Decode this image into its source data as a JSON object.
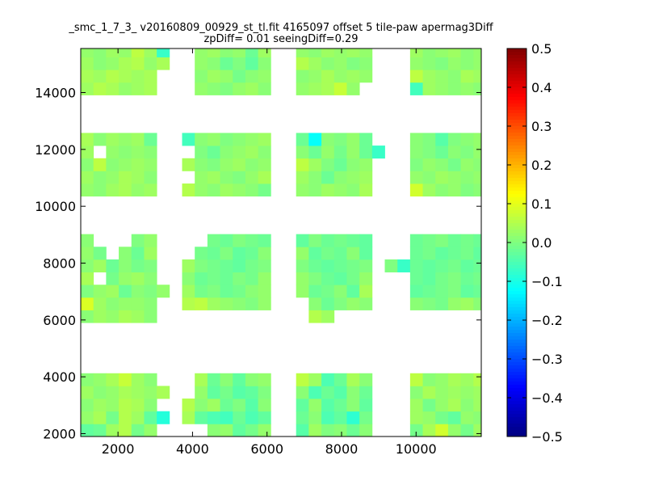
{
  "chart_data": {
    "type": "heatmap",
    "title_lines": [
      "_smc_1_7_3_ v20160809_00929_st_tl.fit 4165097 offset 5 tile-paw apermag3Diff",
      "zpDiff= 0.01 seeingDiff=0.29"
    ],
    "xlabel": "",
    "ylabel": "",
    "xlim": [
      1000,
      11750
    ],
    "ylim": [
      1900,
      15550
    ],
    "x_ticks": [
      2000,
      4000,
      6000,
      8000,
      10000
    ],
    "y_ticks": [
      2000,
      4000,
      6000,
      8000,
      10000,
      12000,
      14000
    ],
    "grid": false,
    "colormap": "jet",
    "color_range": [
      -0.5,
      0.5
    ],
    "colorbar_ticks": [
      0.5,
      0.4,
      0.3,
      0.2,
      0.1,
      0.0,
      -0.1,
      -0.2,
      -0.3,
      -0.4,
      -0.5
    ],
    "colorbar_tick_labels": [
      "0.5",
      "0.4",
      "0.3",
      "0.2",
      "0.1",
      "0.0",
      "−0.1",
      "−0.2",
      "−0.3",
      "−0.4",
      "−0.5"
    ],
    "cell_size": [
      340,
      445
    ],
    "x_bins": [
      1000,
      1340,
      1680,
      2020,
      2360,
      2700,
      3040,
      3380,
      3720,
      4060,
      4400,
      4740,
      5080,
      5420,
      5760,
      6100,
      6440,
      6780,
      7120,
      7460,
      7800,
      8140,
      8480,
      8820,
      9160,
      9500,
      9840,
      10180,
      10520,
      10860,
      11200,
      11540
    ],
    "y_bins": [
      1900,
      2345,
      2790,
      3235,
      3680,
      4125,
      4570,
      5015,
      5460,
      5905,
      6350,
      6795,
      7240,
      7685,
      8130,
      8575,
      9020,
      9465,
      9910,
      10355,
      10800,
      11245,
      11690,
      12135,
      12580,
      13025,
      13470,
      13915,
      14360,
      14805,
      15250,
      15695
    ],
    "cells": [
      [
        -0.03,
        -0.02,
        0.03,
        0.05,
        -0.01,
        0.02,
        null,
        null,
        null,
        null,
        0.01,
        0.02,
        -0.03,
        -0.01,
        0.02,
        null,
        null,
        -0.04,
        0.03,
        0.0,
        0.01,
        -0.02,
        0.01,
        null,
        null,
        null,
        -0.01,
        0.04,
        0.08,
        0.02,
        -0.01,
        0.03
      ],
      [
        0.02,
        0.04,
        -0.01,
        0.05,
        0.03,
        -0.03,
        -0.09,
        null,
        0.04,
        -0.03,
        -0.05,
        -0.06,
        -0.02,
        -0.05,
        -0.03,
        null,
        null,
        -0.02,
        0.01,
        -0.05,
        -0.03,
        -0.08,
        -0.01,
        null,
        null,
        null,
        0.03,
        0.02,
        -0.01,
        -0.03,
        0.02,
        0.01
      ],
      [
        0.01,
        0.03,
        0.02,
        0.05,
        0.04,
        0.01,
        null,
        null,
        0.05,
        0.01,
        0.03,
        -0.02,
        0.0,
        -0.04,
        0.01,
        null,
        null,
        -0.03,
        0.02,
        -0.04,
        -0.02,
        0.01,
        -0.03,
        null,
        null,
        null,
        0.03,
        -0.01,
        0.02,
        0.04,
        0.01,
        0.03
      ],
      [
        0.03,
        0.01,
        0.02,
        0.04,
        0.03,
        0.02,
        0.04,
        null,
        null,
        0.02,
        -0.03,
        -0.01,
        -0.04,
        -0.03,
        0.0,
        null,
        null,
        0.01,
        -0.05,
        -0.02,
        -0.04,
        0.01,
        -0.02,
        null,
        null,
        null,
        0.01,
        0.04,
        0.02,
        0.03,
        0.02,
        0.03
      ],
      [
        0.01,
        0.02,
        0.04,
        0.07,
        0.03,
        0.01,
        null,
        null,
        null,
        0.04,
        -0.02,
        0.01,
        -0.03,
        0.01,
        0.02,
        null,
        null,
        0.06,
        0.03,
        -0.05,
        -0.02,
        0.04,
        0.01,
        null,
        null,
        null,
        0.06,
        0.01,
        0.02,
        0.04,
        0.03,
        0.05
      ],
      [
        null,
        null,
        null,
        null,
        null,
        null,
        null,
        null,
        null,
        null,
        null,
        null,
        null,
        null,
        null,
        null,
        null,
        null,
        null,
        null,
        null,
        null,
        null,
        null,
        null,
        null,
        null,
        null,
        null,
        null,
        null,
        null
      ],
      [
        null,
        null,
        null,
        null,
        null,
        null,
        null,
        null,
        null,
        null,
        null,
        null,
        null,
        null,
        null,
        null,
        null,
        null,
        null,
        null,
        null,
        null,
        null,
        null,
        null,
        null,
        null,
        null,
        null,
        null,
        null,
        null
      ],
      [
        null,
        null,
        null,
        null,
        null,
        null,
        null,
        null,
        null,
        null,
        null,
        null,
        null,
        null,
        null,
        null,
        null,
        null,
        null,
        null,
        null,
        null,
        null,
        null,
        null,
        null,
        null,
        null,
        null,
        null,
        null,
        null
      ],
      [
        null,
        null,
        null,
        null,
        null,
        null,
        null,
        null,
        null,
        null,
        null,
        null,
        null,
        null,
        null,
        null,
        null,
        null,
        null,
        null,
        null,
        null,
        null,
        null,
        null,
        null,
        null,
        null,
        null,
        null,
        null,
        null
      ],
      [
        0.01,
        0.03,
        0.02,
        0.04,
        0.03,
        0.01,
        null,
        null,
        null,
        null,
        null,
        null,
        null,
        null,
        null,
        null,
        null,
        null,
        0.05,
        0.03,
        null,
        null,
        null,
        null,
        null,
        null,
        null,
        null,
        null,
        null,
        null,
        null
      ],
      [
        0.09,
        0.03,
        0.01,
        0.02,
        0.02,
        0.01,
        null,
        null,
        0.05,
        0.06,
        0.03,
        0.02,
        0.01,
        0.0,
        0.02,
        null,
        null,
        null,
        0.01,
        -0.02,
        0.0,
        0.02,
        0.01,
        null,
        null,
        null,
        0.01,
        0.0,
        -0.01,
        0.02,
        0.03,
        0.01
      ],
      [
        0.0,
        0.02,
        0.03,
        -0.02,
        0.01,
        0.0,
        0.02,
        null,
        0.03,
        -0.01,
        0.0,
        -0.02,
        -0.01,
        0.01,
        0.02,
        null,
        null,
        0.02,
        -0.02,
        -0.01,
        0.01,
        -0.03,
        0.04,
        null,
        null,
        null,
        -0.03,
        -0.02,
        -0.01,
        0.0,
        -0.03,
        -0.02
      ],
      [
        0.04,
        null,
        -0.01,
        0.02,
        0.03,
        0.01,
        null,
        null,
        0.01,
        -0.02,
        -0.01,
        -0.02,
        0.0,
        -0.01,
        0.02,
        null,
        null,
        0.02,
        0.0,
        -0.02,
        -0.03,
        -0.01,
        0.02,
        null,
        null,
        null,
        -0.02,
        -0.03,
        -0.01,
        0.0,
        -0.02,
        -0.01
      ],
      [
        0.01,
        0.03,
        -0.02,
        0.01,
        -0.01,
        0.0,
        null,
        null,
        0.03,
        0.0,
        -0.01,
        -0.02,
        -0.03,
        -0.01,
        0.0,
        null,
        null,
        0.0,
        -0.02,
        -0.03,
        -0.02,
        -0.01,
        0.0,
        null,
        0.0,
        -0.07,
        -0.02,
        -0.03,
        -0.02,
        -0.01,
        -0.03,
        -0.02
      ],
      [
        0.02,
        -0.01,
        null,
        0.01,
        -0.02,
        0.03,
        null,
        null,
        null,
        -0.01,
        -0.02,
        0.0,
        -0.03,
        -0.02,
        0.01,
        null,
        null,
        0.02,
        -0.03,
        -0.01,
        -0.02,
        0.01,
        -0.03,
        null,
        null,
        null,
        -0.02,
        -0.01,
        -0.03,
        -0.02,
        -0.01,
        -0.03
      ],
      [
        0.01,
        null,
        null,
        null,
        0.0,
        0.02,
        null,
        null,
        null,
        null,
        -0.01,
        -0.02,
        0.0,
        -0.01,
        -0.02,
        null,
        null,
        -0.03,
        0.0,
        -0.02,
        -0.01,
        -0.02,
        -0.03,
        null,
        null,
        null,
        -0.02,
        -0.01,
        0.0,
        -0.02,
        -0.01,
        -0.02
      ],
      [
        null,
        null,
        null,
        null,
        null,
        null,
        null,
        null,
        null,
        null,
        null,
        null,
        null,
        null,
        null,
        null,
        null,
        null,
        null,
        null,
        null,
        null,
        null,
        null,
        null,
        null,
        null,
        null,
        null,
        null,
        null,
        null
      ],
      [
        null,
        null,
        null,
        null,
        null,
        null,
        null,
        null,
        null,
        null,
        null,
        null,
        null,
        null,
        null,
        null,
        null,
        null,
        null,
        null,
        null,
        null,
        null,
        null,
        null,
        null,
        null,
        null,
        null,
        null,
        null,
        null
      ],
      [
        null,
        null,
        null,
        null,
        null,
        null,
        null,
        null,
        null,
        null,
        null,
        null,
        null,
        null,
        null,
        null,
        null,
        null,
        null,
        null,
        null,
        null,
        null,
        null,
        null,
        null,
        null,
        null,
        null,
        null,
        null,
        null
      ],
      [
        0.02,
        0.01,
        0.03,
        0.04,
        0.02,
        0.03,
        null,
        null,
        0.05,
        0.02,
        0.01,
        0.03,
        0.02,
        0.01,
        -0.01,
        null,
        null,
        0.02,
        0.01,
        0.03,
        0.02,
        0.01,
        0.04,
        null,
        null,
        null,
        0.08,
        0.03,
        0.01,
        0.02,
        0.0,
        0.01
      ],
      [
        0.03,
        0.01,
        0.02,
        0.04,
        0.03,
        0.01,
        null,
        null,
        null,
        0.02,
        0.03,
        0.01,
        0.0,
        0.02,
        0.04,
        null,
        null,
        0.03,
        0.01,
        -0.02,
        0.01,
        0.02,
        0.03,
        null,
        null,
        null,
        0.02,
        0.01,
        0.03,
        0.02,
        0.01,
        0.02
      ],
      [
        0.01,
        0.06,
        0.01,
        0.02,
        0.03,
        0.02,
        null,
        null,
        0.04,
        0.01,
        0.0,
        0.02,
        0.03,
        0.01,
        0.02,
        null,
        null,
        0.06,
        0.03,
        0.0,
        -0.02,
        0.01,
        0.02,
        null,
        null,
        null,
        0.0,
        0.02,
        0.01,
        -0.01,
        0.02,
        0.01
      ],
      [
        0.03,
        null,
        0.02,
        0.01,
        0.02,
        0.01,
        null,
        null,
        null,
        0.0,
        -0.02,
        0.01,
        0.02,
        0.03,
        0.01,
        null,
        null,
        0.01,
        -0.02,
        0.02,
        -0.01,
        0.02,
        -0.02,
        -0.07,
        null,
        null,
        0.01,
        0.0,
        -0.02,
        0.01,
        0.0,
        0.02
      ],
      [
        0.04,
        0.01,
        0.03,
        0.02,
        0.03,
        -0.02,
        null,
        null,
        -0.06,
        0.01,
        0.02,
        0.0,
        0.01,
        0.02,
        0.03,
        null,
        null,
        -0.02,
        -0.12,
        0.01,
        0.0,
        0.02,
        -0.02,
        null,
        null,
        null,
        0.01,
        0.0,
        -0.04,
        0.0,
        0.01,
        0.02
      ],
      [
        null,
        null,
        null,
        null,
        null,
        null,
        null,
        null,
        null,
        null,
        null,
        null,
        null,
        null,
        null,
        null,
        null,
        null,
        null,
        null,
        null,
        null,
        null,
        null,
        null,
        null,
        null,
        null,
        null,
        null,
        null,
        null
      ],
      [
        null,
        null,
        null,
        null,
        null,
        null,
        null,
        null,
        null,
        null,
        null,
        null,
        null,
        null,
        null,
        null,
        null,
        null,
        null,
        null,
        null,
        null,
        null,
        null,
        null,
        null,
        null,
        null,
        null,
        null,
        null,
        null
      ],
      [
        null,
        null,
        null,
        null,
        null,
        null,
        null,
        null,
        null,
        null,
        null,
        null,
        null,
        null,
        null,
        null,
        null,
        null,
        null,
        null,
        null,
        null,
        null,
        null,
        null,
        null,
        null,
        null,
        null,
        null,
        null,
        null
      ],
      [
        0.03,
        0.05,
        0.04,
        0.02,
        0.03,
        0.04,
        null,
        null,
        null,
        0.02,
        0.01,
        0.0,
        0.02,
        0.03,
        0.01,
        null,
        null,
        0.02,
        0.03,
        0.04,
        0.07,
        0.02,
        null,
        null,
        null,
        null,
        -0.06,
        0.03,
        0.02,
        0.01,
        0.02,
        0.01
      ],
      [
        0.04,
        0.03,
        0.05,
        0.04,
        0.03,
        0.04,
        null,
        null,
        null,
        0.01,
        0.03,
        0.02,
        -0.01,
        0.01,
        0.02,
        null,
        null,
        0.01,
        0.02,
        0.04,
        0.02,
        0.03,
        0.02,
        null,
        null,
        null,
        0.06,
        0.03,
        0.02,
        0.01,
        0.04,
        0.03
      ],
      [
        0.03,
        0.01,
        0.02,
        0.04,
        0.05,
        0.02,
        0.04,
        null,
        null,
        0.02,
        0.01,
        -0.02,
        0.0,
        -0.03,
        0.01,
        null,
        null,
        0.05,
        0.03,
        0.01,
        0.02,
        0.0,
        0.01,
        null,
        null,
        null,
        0.02,
        0.01,
        0.0,
        0.02,
        0.01,
        0.02
      ],
      [
        0.02,
        0.01,
        0.03,
        0.02,
        0.06,
        0.03,
        -0.07,
        null,
        null,
        0.02,
        0.03,
        0.01,
        0.02,
        -0.02,
        0.03,
        null,
        null,
        0.02,
        0.01,
        0.03,
        0.02,
        0.03,
        0.02,
        null,
        null,
        null,
        0.03,
        0.01,
        0.02,
        0.03,
        0.01,
        0.02
      ],
      [
        null,
        0.04,
        0.03,
        0.02,
        null,
        0.03,
        null,
        null,
        null,
        0.02,
        0.01,
        0.02,
        0.03,
        0.02,
        0.04,
        null,
        null,
        0.06,
        0.04,
        null,
        null,
        0.02,
        0.03,
        null,
        null,
        null,
        0.03,
        null,
        0.02,
        0.03,
        0.04,
        0.02
      ]
    ]
  }
}
